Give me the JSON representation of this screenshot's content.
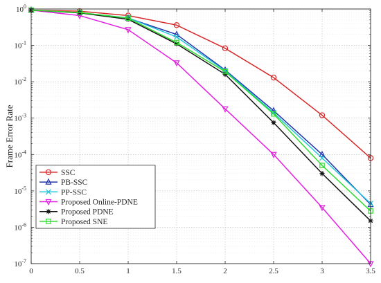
{
  "chart_data": {
    "type": "line",
    "ylabel": "Frame Error Rate",
    "xlabel": "",
    "title": "",
    "y_scale": "log",
    "xlim": [
      0,
      3.5
    ],
    "ylim": [
      1e-07,
      1
    ],
    "grid": true,
    "legend_position": "bottom-left",
    "x_ticks": [
      "0",
      "0.5",
      "1",
      "1.5",
      "2",
      "2.5",
      "3",
      "3.5"
    ],
    "y_ticks": [
      {
        "exp": 0,
        "value": 1
      },
      {
        "exp": -1,
        "value": 0.1
      },
      {
        "exp": -2,
        "value": 0.01
      },
      {
        "exp": -3,
        "value": 0.001
      },
      {
        "exp": -4,
        "value": 0.0001
      },
      {
        "exp": -5,
        "value": 1e-05
      },
      {
        "exp": -6,
        "value": 1e-06
      },
      {
        "exp": -7,
        "value": 1e-07
      }
    ],
    "x": [
      0,
      0.5,
      1,
      1.5,
      2,
      2.5,
      3,
      3.5
    ],
    "series": [
      {
        "name": "SSC",
        "color": "#d62728",
        "marker": "circle",
        "values": [
          0.93,
          0.87,
          0.66,
          0.36,
          0.083,
          0.013,
          0.0012,
          8e-05
        ]
      },
      {
        "name": "PB-SSC",
        "color": "#2233aa",
        "marker": "triangle-up",
        "values": [
          0.93,
          0.79,
          0.56,
          0.2,
          0.021,
          0.0016,
          0.0001,
          4.2e-06
        ]
      },
      {
        "name": "PP-SSC",
        "color": "#21c5d8",
        "marker": "x",
        "values": [
          0.93,
          0.79,
          0.57,
          0.17,
          0.02,
          0.0014,
          8e-05,
          4.5e-06
        ]
      },
      {
        "name": "Proposed Online-PDNE",
        "color": "#e21ee0",
        "marker": "triangle-down",
        "values": [
          0.93,
          0.66,
          0.27,
          0.033,
          0.0018,
          0.0001,
          3.5e-06,
          1e-07
        ]
      },
      {
        "name": "Proposed PDNE",
        "color": "#111111",
        "marker": "star",
        "values": [
          0.93,
          0.78,
          0.52,
          0.11,
          0.016,
          0.00075,
          3e-05,
          1.5e-06
        ]
      },
      {
        "name": "Proposed SNE",
        "color": "#2edc2e",
        "marker": "square",
        "values": [
          0.93,
          0.8,
          0.56,
          0.12,
          0.019,
          0.0013,
          5e-05,
          2.8e-06
        ]
      }
    ]
  }
}
